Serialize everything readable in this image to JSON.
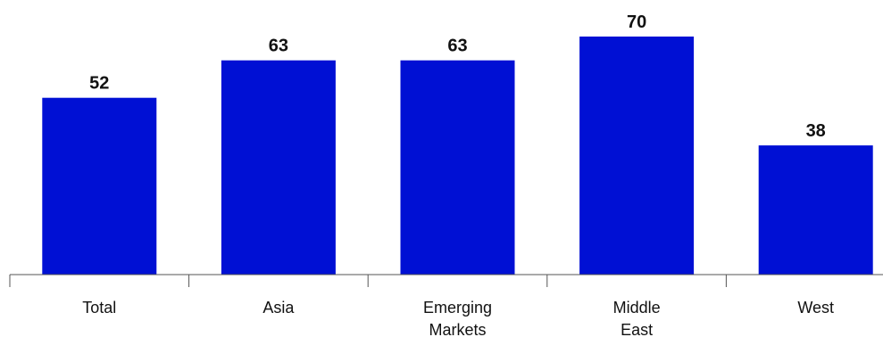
{
  "chart_data": {
    "type": "bar",
    "title": "",
    "xlabel": "",
    "ylabel": "",
    "categories": [
      "Total",
      "Asia",
      "Emerging Markets",
      "Middle East",
      "West"
    ],
    "category_lines": [
      [
        "Total"
      ],
      [
        "Asia"
      ],
      [
        "Emerging",
        "Markets"
      ],
      [
        "Middle",
        "East"
      ],
      [
        "West"
      ]
    ],
    "values": [
      52,
      63,
      63,
      70,
      38
    ],
    "data_labels": [
      "52",
      "63",
      "63",
      "70",
      "38"
    ],
    "ylim": [
      0,
      70
    ],
    "grid": false,
    "legend": "none",
    "bar_color": "#0010d4"
  }
}
